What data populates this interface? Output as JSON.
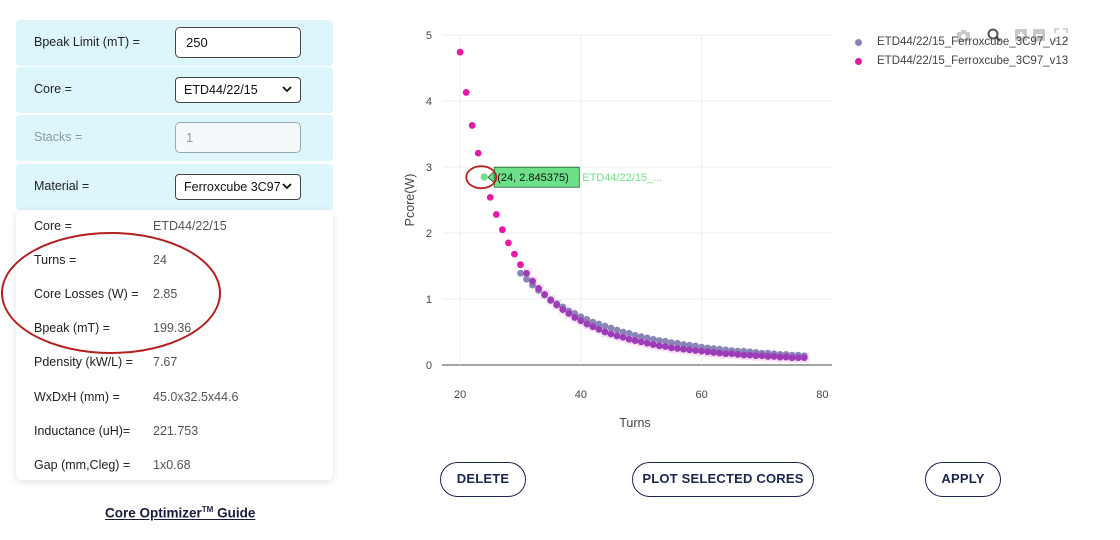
{
  "inputs": {
    "bpeak_limit": {
      "label": "Bpeak Limit (mT) =",
      "value": "250"
    },
    "core": {
      "label": "Core =",
      "value": "ETD44/22/15"
    },
    "stacks": {
      "label": "Stacks =",
      "value": "1"
    },
    "material": {
      "label": "Material =",
      "value": "Ferroxcube 3C97"
    }
  },
  "results": [
    {
      "label": "Core =",
      "value": "ETD44/22/15"
    },
    {
      "label": "Turns =",
      "value": "24"
    },
    {
      "label": "Core Losses (W) =",
      "value": "2.85"
    },
    {
      "label": "Bpeak (mT) =",
      "value": "199.36"
    },
    {
      "label": "Pdensity (kW/L) =",
      "value": "7.67"
    },
    {
      "label": "WxDxH (mm) =",
      "value": "45.0x32.5x44.6"
    },
    {
      "label": "Inductance (uH)=",
      "value": "221.753"
    },
    {
      "label": "Gap (mm,Cleg) =",
      "value": "1x0.68"
    }
  ],
  "guide": {
    "text": "Core Optimizer",
    "sup": "TM",
    "suffix": " Guide"
  },
  "buttons": {
    "delete": "DELETE",
    "plot": "PLOT SELECTED CORES",
    "apply": "APPLY"
  },
  "colors": {
    "panel": "#ddf6fb",
    "series1": "#8a84b8",
    "series2": "#e619a6",
    "overlap": "#9d3bb8",
    "hover": "#6ee08a"
  },
  "chart_data": {
    "type": "scatter",
    "xlabel": "Turns",
    "ylabel": "Pcore(W)",
    "xlim": [
      17,
      77
    ],
    "ylim": [
      0,
      5
    ],
    "xticks": [
      20,
      40,
      60,
      80
    ],
    "yticks": [
      0,
      1,
      2,
      3,
      4,
      5
    ],
    "grid": true,
    "legend_position": "top-right",
    "series": [
      {
        "name": "ETD44/22/15_Ferroxcube_3C97_v12",
        "color": "#8a84b8",
        "x": [
          30,
          31,
          32,
          33,
          34,
          35,
          36,
          37,
          38,
          39,
          40,
          41,
          42,
          43,
          44,
          45,
          46,
          47,
          48,
          49,
          50,
          51,
          52,
          53,
          54,
          55,
          56,
          57,
          58,
          59,
          60,
          61,
          62,
          63,
          64,
          65,
          66,
          67,
          68,
          69,
          70,
          71,
          72,
          73,
          74,
          75,
          76,
          77
        ],
        "y": [
          1.39,
          1.3,
          1.21,
          1.13,
          1.06,
          0.99,
          0.93,
          0.88,
          0.82,
          0.78,
          0.73,
          0.69,
          0.65,
          0.62,
          0.59,
          0.56,
          0.53,
          0.5,
          0.48,
          0.45,
          0.43,
          0.41,
          0.39,
          0.37,
          0.36,
          0.34,
          0.33,
          0.31,
          0.3,
          0.29,
          0.27,
          0.26,
          0.25,
          0.24,
          0.23,
          0.22,
          0.21,
          0.21,
          0.2,
          0.19,
          0.18,
          0.18,
          0.17,
          0.16,
          0.16,
          0.15,
          0.15,
          0.14
        ]
      },
      {
        "name": "ETD44/22/15_Ferroxcube_3C97_v13",
        "color": "#e619a6",
        "x": [
          20,
          21,
          22,
          23,
          24,
          25,
          26,
          27,
          28,
          29,
          30,
          31,
          32,
          33,
          34,
          35,
          36,
          37,
          38,
          39,
          40,
          41,
          42,
          43,
          44,
          45,
          46,
          47,
          48,
          49,
          50,
          51,
          52,
          53,
          54,
          55,
          56,
          57,
          58,
          59,
          60,
          61,
          62,
          63,
          64,
          65,
          66,
          67,
          68,
          69,
          70,
          71,
          72,
          73,
          74,
          75,
          76,
          77
        ],
        "y": [
          4.74,
          4.13,
          3.63,
          3.21,
          2.85,
          2.54,
          2.28,
          2.05,
          1.85,
          1.68,
          1.52,
          1.39,
          1.27,
          1.16,
          1.07,
          0.98,
          0.91,
          0.84,
          0.78,
          0.72,
          0.67,
          0.62,
          0.58,
          0.54,
          0.5,
          0.47,
          0.44,
          0.42,
          0.39,
          0.37,
          0.35,
          0.33,
          0.31,
          0.29,
          0.28,
          0.26,
          0.25,
          0.24,
          0.23,
          0.22,
          0.21,
          0.2,
          0.19,
          0.18,
          0.17,
          0.17,
          0.16,
          0.15,
          0.15,
          0.14,
          0.14,
          0.13,
          0.13,
          0.12,
          0.12,
          0.11,
          0.11,
          0.11
        ]
      }
    ],
    "hover": {
      "x": 24,
      "y": 2.845375,
      "text": "(24, 2.845375)",
      "series_label": "ETD44/22/15_..."
    }
  }
}
